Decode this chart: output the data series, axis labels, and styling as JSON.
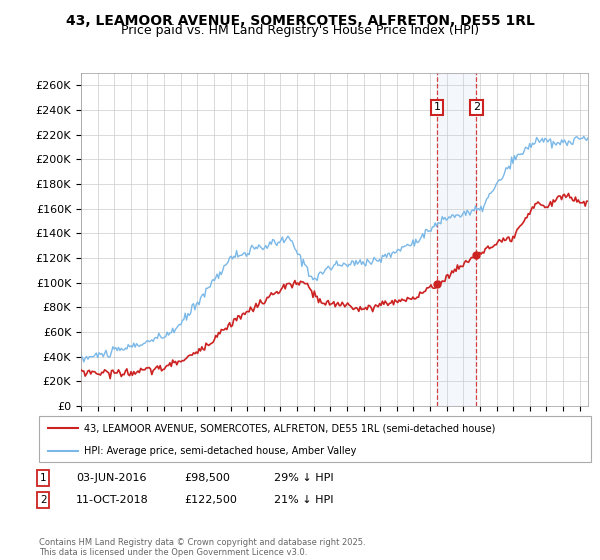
{
  "title_line1": "43, LEAMOOR AVENUE, SOMERCOTES, ALFRETON, DE55 1RL",
  "title_line2": "Price paid vs. HM Land Registry's House Price Index (HPI)",
  "ylabel_ticks": [
    "£0",
    "£20K",
    "£40K",
    "£60K",
    "£80K",
    "£100K",
    "£120K",
    "£140K",
    "£160K",
    "£180K",
    "£200K",
    "£220K",
    "£240K",
    "£260K"
  ],
  "ytick_values": [
    0,
    20000,
    40000,
    60000,
    80000,
    100000,
    120000,
    140000,
    160000,
    180000,
    200000,
    220000,
    240000,
    260000
  ],
  "hpi_color": "#7ab8e8",
  "price_color": "#cc2222",
  "marker1_year": 2016.42,
  "marker1_price": 98500,
  "marker1_date": "03-JUN-2016",
  "marker1_text": "29% ↓ HPI",
  "marker2_year": 2018.78,
  "marker2_price": 122500,
  "marker2_date": "11-OCT-2018",
  "marker2_text": "21% ↓ HPI",
  "legend_label1": "43, LEAMOOR AVENUE, SOMERCOTES, ALFRETON, DE55 1RL (semi-detached house)",
  "legend_label2": "HPI: Average price, semi-detached house, Amber Valley",
  "footer": "Contains HM Land Registry data © Crown copyright and database right 2025.\nThis data is licensed under the Open Government Licence v3.0.",
  "background_color": "#ffffff",
  "grid_color": "#cccccc",
  "xmin": 1995,
  "xmax": 2025.5,
  "ymin": 0,
  "ymax": 270000
}
